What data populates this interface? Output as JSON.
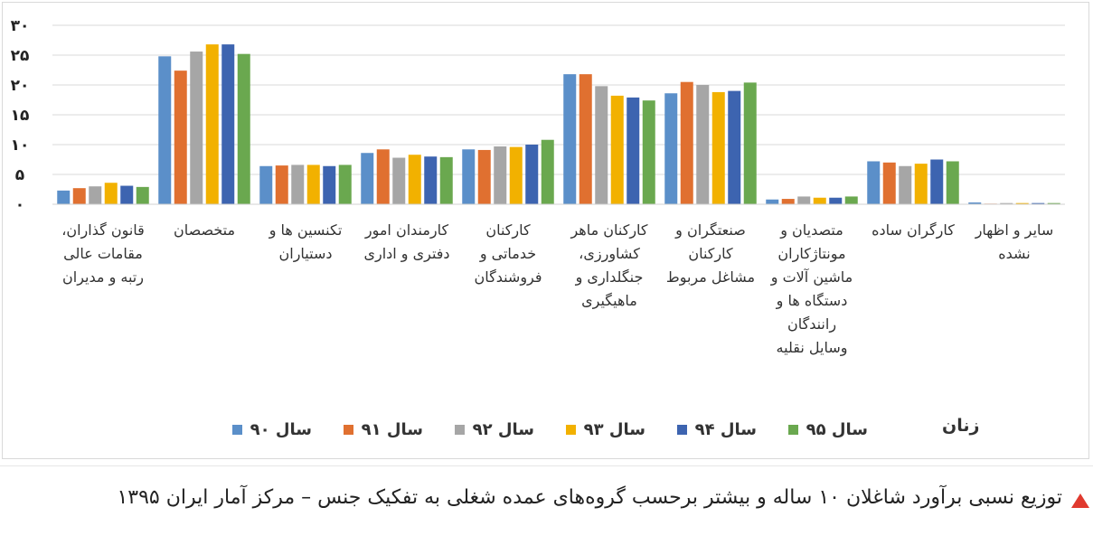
{
  "chart_data": {
    "type": "bar",
    "title": "",
    "legend_title": "زنان",
    "ylim": [
      0,
      30
    ],
    "yticks": [
      "۰",
      "۵",
      "۱۰",
      "۱۵",
      "۲۰",
      "۲۵",
      "۳۰"
    ],
    "categories": [
      "قانون گذاران، مقامات عالی رتبه و مدیران",
      "متخصصان",
      "تکنسین ها و دستیاران",
      "کارمندان امور دفتری و اداری",
      "کارکنان خدماتی و فروشندگان",
      "کارکنان ماهر کشاورزی، جنگلداری و ماهیگیری",
      "صنعتگران و کارکنان مشاغل مربوط",
      "متصدیان و مونتاژکاران ماشین آلات و دستگاه ها و رانندگان وسایل نقلیه",
      "کارگران ساده",
      "سایر و اظهار نشده"
    ],
    "series": [
      {
        "name": "سال ۹۰",
        "color": "#5b8fc9",
        "values": [
          2.3,
          24.8,
          6.4,
          8.6,
          9.2,
          21.8,
          18.6,
          0.8,
          7.2,
          0.3
        ]
      },
      {
        "name": "سال ۹۱",
        "color": "#e07030",
        "values": [
          2.7,
          22.4,
          6.5,
          9.2,
          9.1,
          21.8,
          20.5,
          0.9,
          7.0,
          0.1
        ]
      },
      {
        "name": "سال ۹۲",
        "color": "#a6a6a6",
        "values": [
          3.0,
          25.6,
          6.6,
          7.8,
          9.7,
          19.8,
          20.0,
          1.3,
          6.4,
          0.2
        ]
      },
      {
        "name": "سال ۹۳",
        "color": "#f2b100",
        "values": [
          3.6,
          26.8,
          6.6,
          8.3,
          9.6,
          18.2,
          18.8,
          1.1,
          6.8,
          0.2
        ]
      },
      {
        "name": "سال ۹۴",
        "color": "#3d64b0",
        "values": [
          3.1,
          26.8,
          6.4,
          8.0,
          10.0,
          17.9,
          19.0,
          1.1,
          7.5,
          0.2
        ]
      },
      {
        "name": "سال ۹۵",
        "color": "#6aa84f",
        "values": [
          2.9,
          25.2,
          6.6,
          7.9,
          10.8,
          17.4,
          20.4,
          1.3,
          7.2,
          0.2
        ]
      }
    ]
  },
  "category_lines": [
    [
      "قانون گذاران،",
      "مقامات عالی",
      "رتبه و مدیران"
    ],
    [
      "متخصصان"
    ],
    [
      "تکنسین ها و",
      "دستیاران"
    ],
    [
      "کارمندان امور",
      "دفتری و اداری"
    ],
    [
      "کارکنان",
      "خدماتی و",
      "فروشندگان"
    ],
    [
      "کارکنان ماهر",
      "کشاورزی،",
      "جنگلداری و",
      "ماهیگیری"
    ],
    [
      "صنعتگران و",
      "کارکنان",
      "مشاغل مربوط"
    ],
    [
      "متصدیان و",
      "مونتاژکاران",
      "ماشین آلات و",
      "دستگاه ها و",
      "رانندگان",
      "وسایل نقلیه"
    ],
    [
      "کارگران ساده"
    ],
    [
      "سایر و اظهار",
      "نشده"
    ]
  ],
  "caption": "توزیع نسبی برآورد شاغلان ۱۰ ساله و بیشتر برحسب گروه‌های عمده شغلی به تفکیک جنس – مرکز آمار ایران ۱۳۹۵"
}
